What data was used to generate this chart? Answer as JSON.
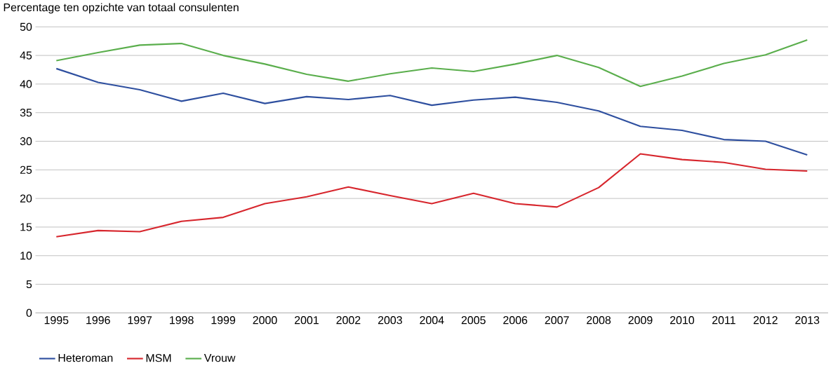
{
  "chart_data": {
    "type": "line",
    "ylabel": "Percentage ten opzichte van totaal consulenten",
    "categories": [
      "1995",
      "1996",
      "1997",
      "1998",
      "1999",
      "2000",
      "2001",
      "2002",
      "2003",
      "2004",
      "2005",
      "2006",
      "2007",
      "2008",
      "2009",
      "2010",
      "2011",
      "2012",
      "2013"
    ],
    "series": [
      {
        "name": "Heteroman",
        "color": "#2e4f9f",
        "values": [
          42.7,
          40.3,
          39.0,
          37.0,
          38.4,
          36.6,
          37.8,
          37.3,
          38.0,
          36.3,
          37.2,
          37.7,
          36.8,
          35.3,
          32.6,
          31.9,
          30.3,
          30.0,
          27.6
        ]
      },
      {
        "name": "MSM",
        "color": "#d7262d",
        "values": [
          13.3,
          14.4,
          14.2,
          16.0,
          16.7,
          19.1,
          20.3,
          22.0,
          20.5,
          19.1,
          20.9,
          19.1,
          18.5,
          21.9,
          27.8,
          26.8,
          26.3,
          25.1,
          24.8
        ]
      },
      {
        "name": "Vrouw",
        "color": "#5aae4c",
        "values": [
          44.1,
          45.5,
          46.8,
          47.1,
          45.0,
          43.5,
          41.7,
          40.5,
          41.8,
          42.8,
          42.2,
          43.5,
          45.0,
          42.9,
          39.6,
          41.4,
          43.6,
          45.1,
          47.7
        ]
      }
    ],
    "ylim": [
      0,
      50
    ],
    "yticks": [
      0,
      5,
      10,
      15,
      20,
      25,
      30,
      35,
      40,
      45,
      50
    ],
    "grid": "y",
    "legend": "bottom left",
    "marker": "none",
    "line_style": "solid"
  }
}
